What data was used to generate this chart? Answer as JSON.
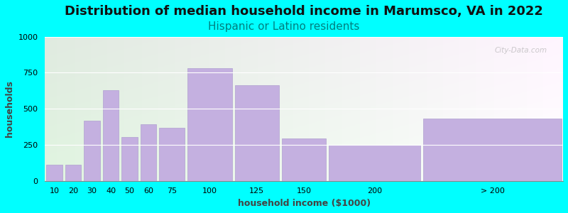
{
  "title": "Distribution of median household income in Marumsco, VA in 2022",
  "subtitle": "Hispanic or Latino residents",
  "xlabel": "household income ($1000)",
  "ylabel": "households",
  "background_color": "#00FFFF",
  "bar_color": "#C4B0E0",
  "bar_edgecolor": "#B0A0D0",
  "categories": [
    "10",
    "20",
    "30",
    "40",
    "50",
    "60",
    "75",
    "100",
    "125",
    "150",
    "200",
    "> 200"
  ],
  "left_edges": [
    0,
    10,
    20,
    30,
    40,
    50,
    60,
    75,
    100,
    125,
    150,
    200
  ],
  "widths": [
    10,
    10,
    10,
    10,
    10,
    10,
    15,
    25,
    25,
    25,
    50,
    75
  ],
  "values": [
    110,
    110,
    415,
    630,
    305,
    390,
    370,
    780,
    665,
    295,
    250,
    430
  ],
  "tick_positions": [
    5,
    15,
    25,
    35,
    45,
    55,
    67.5,
    87.5,
    112.5,
    137.5,
    175,
    237.5
  ],
  "ylim": [
    0,
    1000
  ],
  "yticks": [
    0,
    250,
    500,
    750,
    1000
  ],
  "title_fontsize": 13,
  "subtitle_fontsize": 11,
  "subtitle_color": "#008080",
  "axis_label_fontsize": 9,
  "tick_fontsize": 8,
  "watermark": "City-Data.com"
}
